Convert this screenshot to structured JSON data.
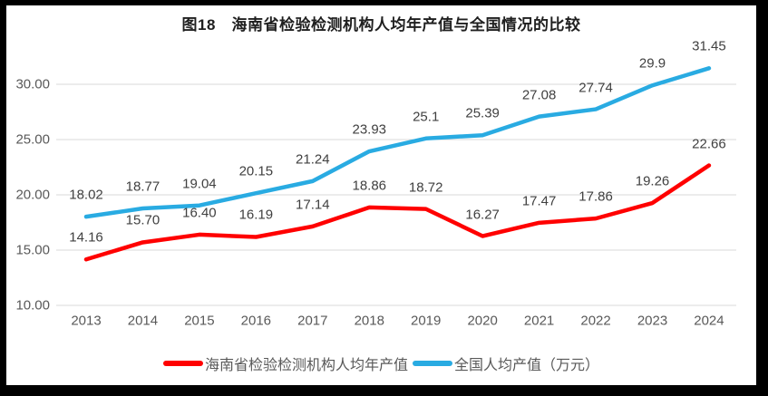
{
  "frame": {
    "background_color": "#000000",
    "card_background_color": "#ffffff"
  },
  "chart_data": {
    "type": "line",
    "title": "图18　海南省检验检测机构人均年产值与全国情况的比较",
    "categories": [
      "2013",
      "2014",
      "2015",
      "2016",
      "2017",
      "2018",
      "2019",
      "2020",
      "2021",
      "2022",
      "2023",
      "2024"
    ],
    "series": [
      {
        "name": "海南省检验检测机构人均年产值",
        "color": "#ff0000",
        "values": [
          14.16,
          15.7,
          16.4,
          16.19,
          17.14,
          18.86,
          18.72,
          16.27,
          17.47,
          17.86,
          19.26,
          22.66
        ],
        "labels": [
          "14.16",
          "15.70",
          "16.40",
          "16.19",
          "17.14",
          "18.86",
          "18.72",
          "16.27",
          "17.47",
          "17.86",
          "19.26",
          "22.66"
        ]
      },
      {
        "name": "全国人均产值（万元）",
        "color": "#29abe2",
        "values": [
          18.02,
          18.77,
          19.04,
          20.15,
          21.24,
          23.93,
          25.1,
          25.39,
          27.08,
          27.74,
          29.9,
          31.45
        ],
        "labels": [
          "18.02",
          "18.77",
          "19.04",
          "20.15",
          "21.24",
          "23.93",
          "25.1",
          "25.39",
          "27.08",
          "27.74",
          "29.9",
          "31.45"
        ]
      }
    ],
    "xlabel": "",
    "ylabel": "",
    "y_ticks": [
      30,
      25,
      20,
      15,
      10
    ],
    "y_tick_labels": [
      "30.00",
      "25.00",
      "20.00",
      "15.00",
      "10.00"
    ],
    "ylim": [
      10,
      30
    ],
    "grid": true,
    "gridline_color": "#d9d9d9",
    "data_label_color": "#404040",
    "axis_label_color": "#595959",
    "legend_position": "bottom"
  }
}
